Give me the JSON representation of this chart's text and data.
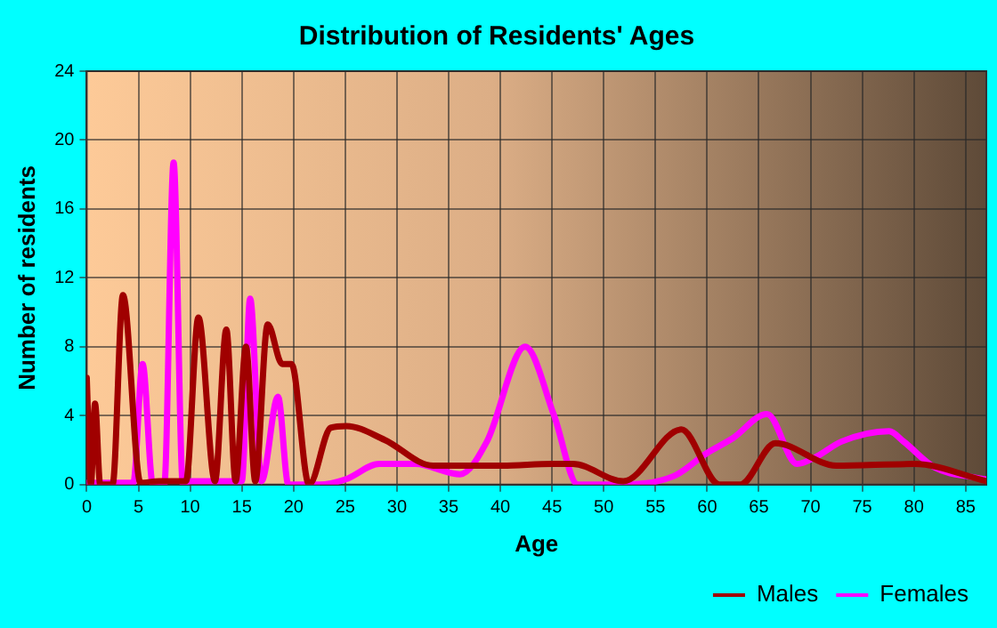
{
  "chart_data": {
    "type": "line",
    "title": "Distribution of Residents' Ages",
    "xlabel": "Age",
    "ylabel": "Number of residents",
    "xlim": [
      0,
      87
    ],
    "xticks": [
      0,
      5,
      10,
      15,
      20,
      25,
      30,
      35,
      40,
      45,
      50,
      55,
      60,
      65,
      70,
      75,
      80,
      85
    ],
    "ylim": [
      0,
      24
    ],
    "yticks": [
      0,
      4,
      8,
      12,
      16,
      20,
      24
    ],
    "grid": true,
    "legend": "bottom right",
    "marker": "none",
    "line_style": "solid",
    "series": [
      {
        "name": "Males",
        "color": "#a00000",
        "x": [
          0,
          0.4,
          0.8,
          1.3,
          2.5,
          3.5,
          5.2,
          7,
          9.6,
          10.8,
          12.4,
          13.5,
          14.4,
          15.4,
          16.3,
          17.5,
          18.9,
          19.8,
          21.5,
          23.6,
          25.1,
          28.8,
          33.5,
          40.2,
          45,
          47,
          51.9,
          57.5,
          61.2,
          63.2,
          66.6,
          72.5,
          80,
          87
        ],
        "values": [
          6.2,
          0,
          4.7,
          0,
          0,
          11,
          0.1,
          0.2,
          0.2,
          9.7,
          0.2,
          9,
          0.2,
          8,
          0.2,
          9.3,
          7,
          7,
          0,
          3.3,
          3.4,
          2.6,
          1.1,
          1.1,
          1.2,
          1.2,
          0.2,
          3.2,
          0,
          0,
          2.4,
          1.1,
          1.2,
          0.2
        ]
      },
      {
        "name": "Females",
        "color": "#ff00ff",
        "x": [
          0,
          3,
          4.5,
          5.4,
          6.4,
          7.5,
          8.4,
          9.3,
          10,
          15,
          15.8,
          16.9,
          18.5,
          19.5,
          22.5,
          25,
          28.3,
          31.8,
          36.1,
          38.7,
          42.4,
          45.2,
          47.5,
          51,
          56.8,
          59.9,
          62.5,
          65.8,
          68.7,
          70.5,
          73,
          77.6,
          79,
          82,
          86,
          87
        ],
        "values": [
          0.1,
          0.1,
          0.1,
          7,
          0,
          0,
          18.7,
          0,
          0.2,
          0.2,
          10.8,
          0.2,
          5.1,
          0,
          0,
          0.3,
          1.2,
          1.2,
          0.6,
          2.5,
          8,
          4,
          0,
          0,
          0.5,
          1.8,
          2.7,
          4.1,
          1.2,
          1.6,
          2.5,
          3.1,
          2.5,
          1,
          0.4,
          0.3
        ]
      }
    ]
  }
}
